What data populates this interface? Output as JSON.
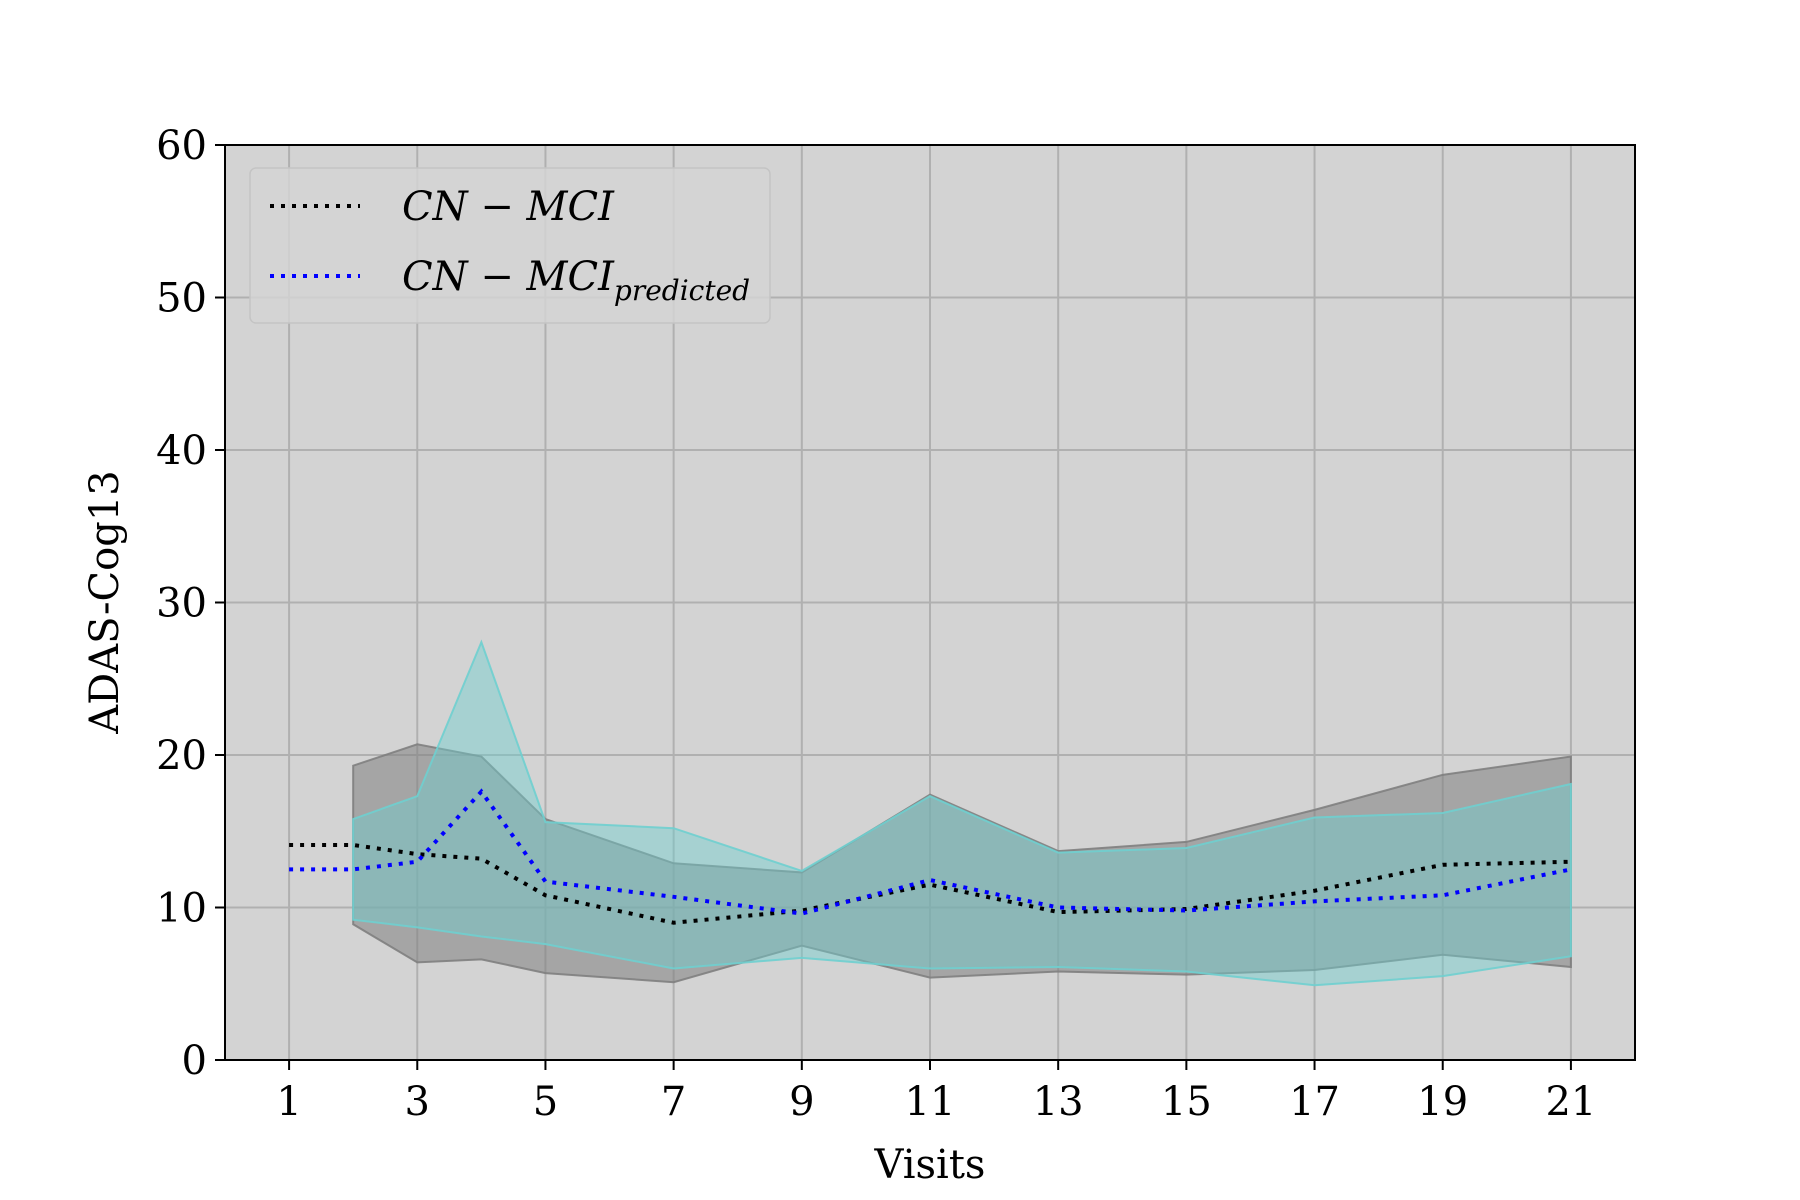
{
  "chart_data": {
    "type": "line",
    "title": "",
    "xlabel": "Visits",
    "ylabel": "ADAS-Cog13",
    "xlim": [
      0,
      22
    ],
    "ylim": [
      0,
      60
    ],
    "xticks": [
      1,
      3,
      5,
      7,
      9,
      11,
      13,
      15,
      17,
      19,
      21
    ],
    "yticks": [
      0,
      10,
      20,
      30,
      40,
      50,
      60
    ],
    "grid": true,
    "legend_position": "upper-left",
    "plot_background": "#d3d3d3",
    "series": [
      {
        "name": "CN − MCI",
        "color": "#000000",
        "style": "dotted",
        "x": [
          1,
          2,
          3,
          4,
          5,
          7,
          9,
          11,
          13,
          15,
          17,
          19,
          21
        ],
        "y": [
          14.1,
          14.1,
          13.5,
          13.2,
          10.8,
          9.0,
          9.8,
          11.5,
          9.7,
          9.9,
          11.1,
          12.8,
          13.0
        ]
      },
      {
        "name": "CN − MCI",
        "name_subscript": "predicted",
        "color": "#0000ff",
        "style": "dotted",
        "x": [
          1,
          2,
          3,
          4,
          5,
          7,
          9,
          11,
          13,
          15,
          17,
          19,
          21
        ],
        "y": [
          12.5,
          12.5,
          13.0,
          17.6,
          11.7,
          10.7,
          9.6,
          11.8,
          10.0,
          9.8,
          10.4,
          10.8,
          12.5
        ]
      }
    ],
    "bands": [
      {
        "series": "CN − MCI",
        "color": "#808080",
        "opacity": 0.55,
        "x": [
          2,
          3,
          4,
          5,
          7,
          9,
          11,
          13,
          15,
          17,
          19,
          21
        ],
        "upper": [
          19.3,
          20.7,
          19.9,
          15.8,
          12.9,
          12.3,
          17.4,
          13.7,
          14.3,
          16.4,
          18.7,
          19.9
        ],
        "lower": [
          8.9,
          6.4,
          6.6,
          5.7,
          5.1,
          7.5,
          5.4,
          5.8,
          5.6,
          5.9,
          6.9,
          6.1
        ]
      },
      {
        "series": "CN − MCI predicted",
        "color": "#6fcfcf",
        "opacity": 0.45,
        "x": [
          2,
          3,
          4,
          5,
          7,
          9,
          11,
          13,
          15,
          17,
          19,
          21
        ],
        "upper": [
          15.8,
          17.3,
          27.4,
          15.6,
          15.2,
          12.4,
          17.3,
          13.6,
          13.9,
          15.9,
          16.2,
          18.1
        ],
        "lower": [
          9.2,
          8.7,
          8.1,
          7.6,
          6.0,
          6.7,
          6.0,
          6.1,
          5.8,
          4.9,
          5.5,
          6.8
        ]
      }
    ]
  }
}
